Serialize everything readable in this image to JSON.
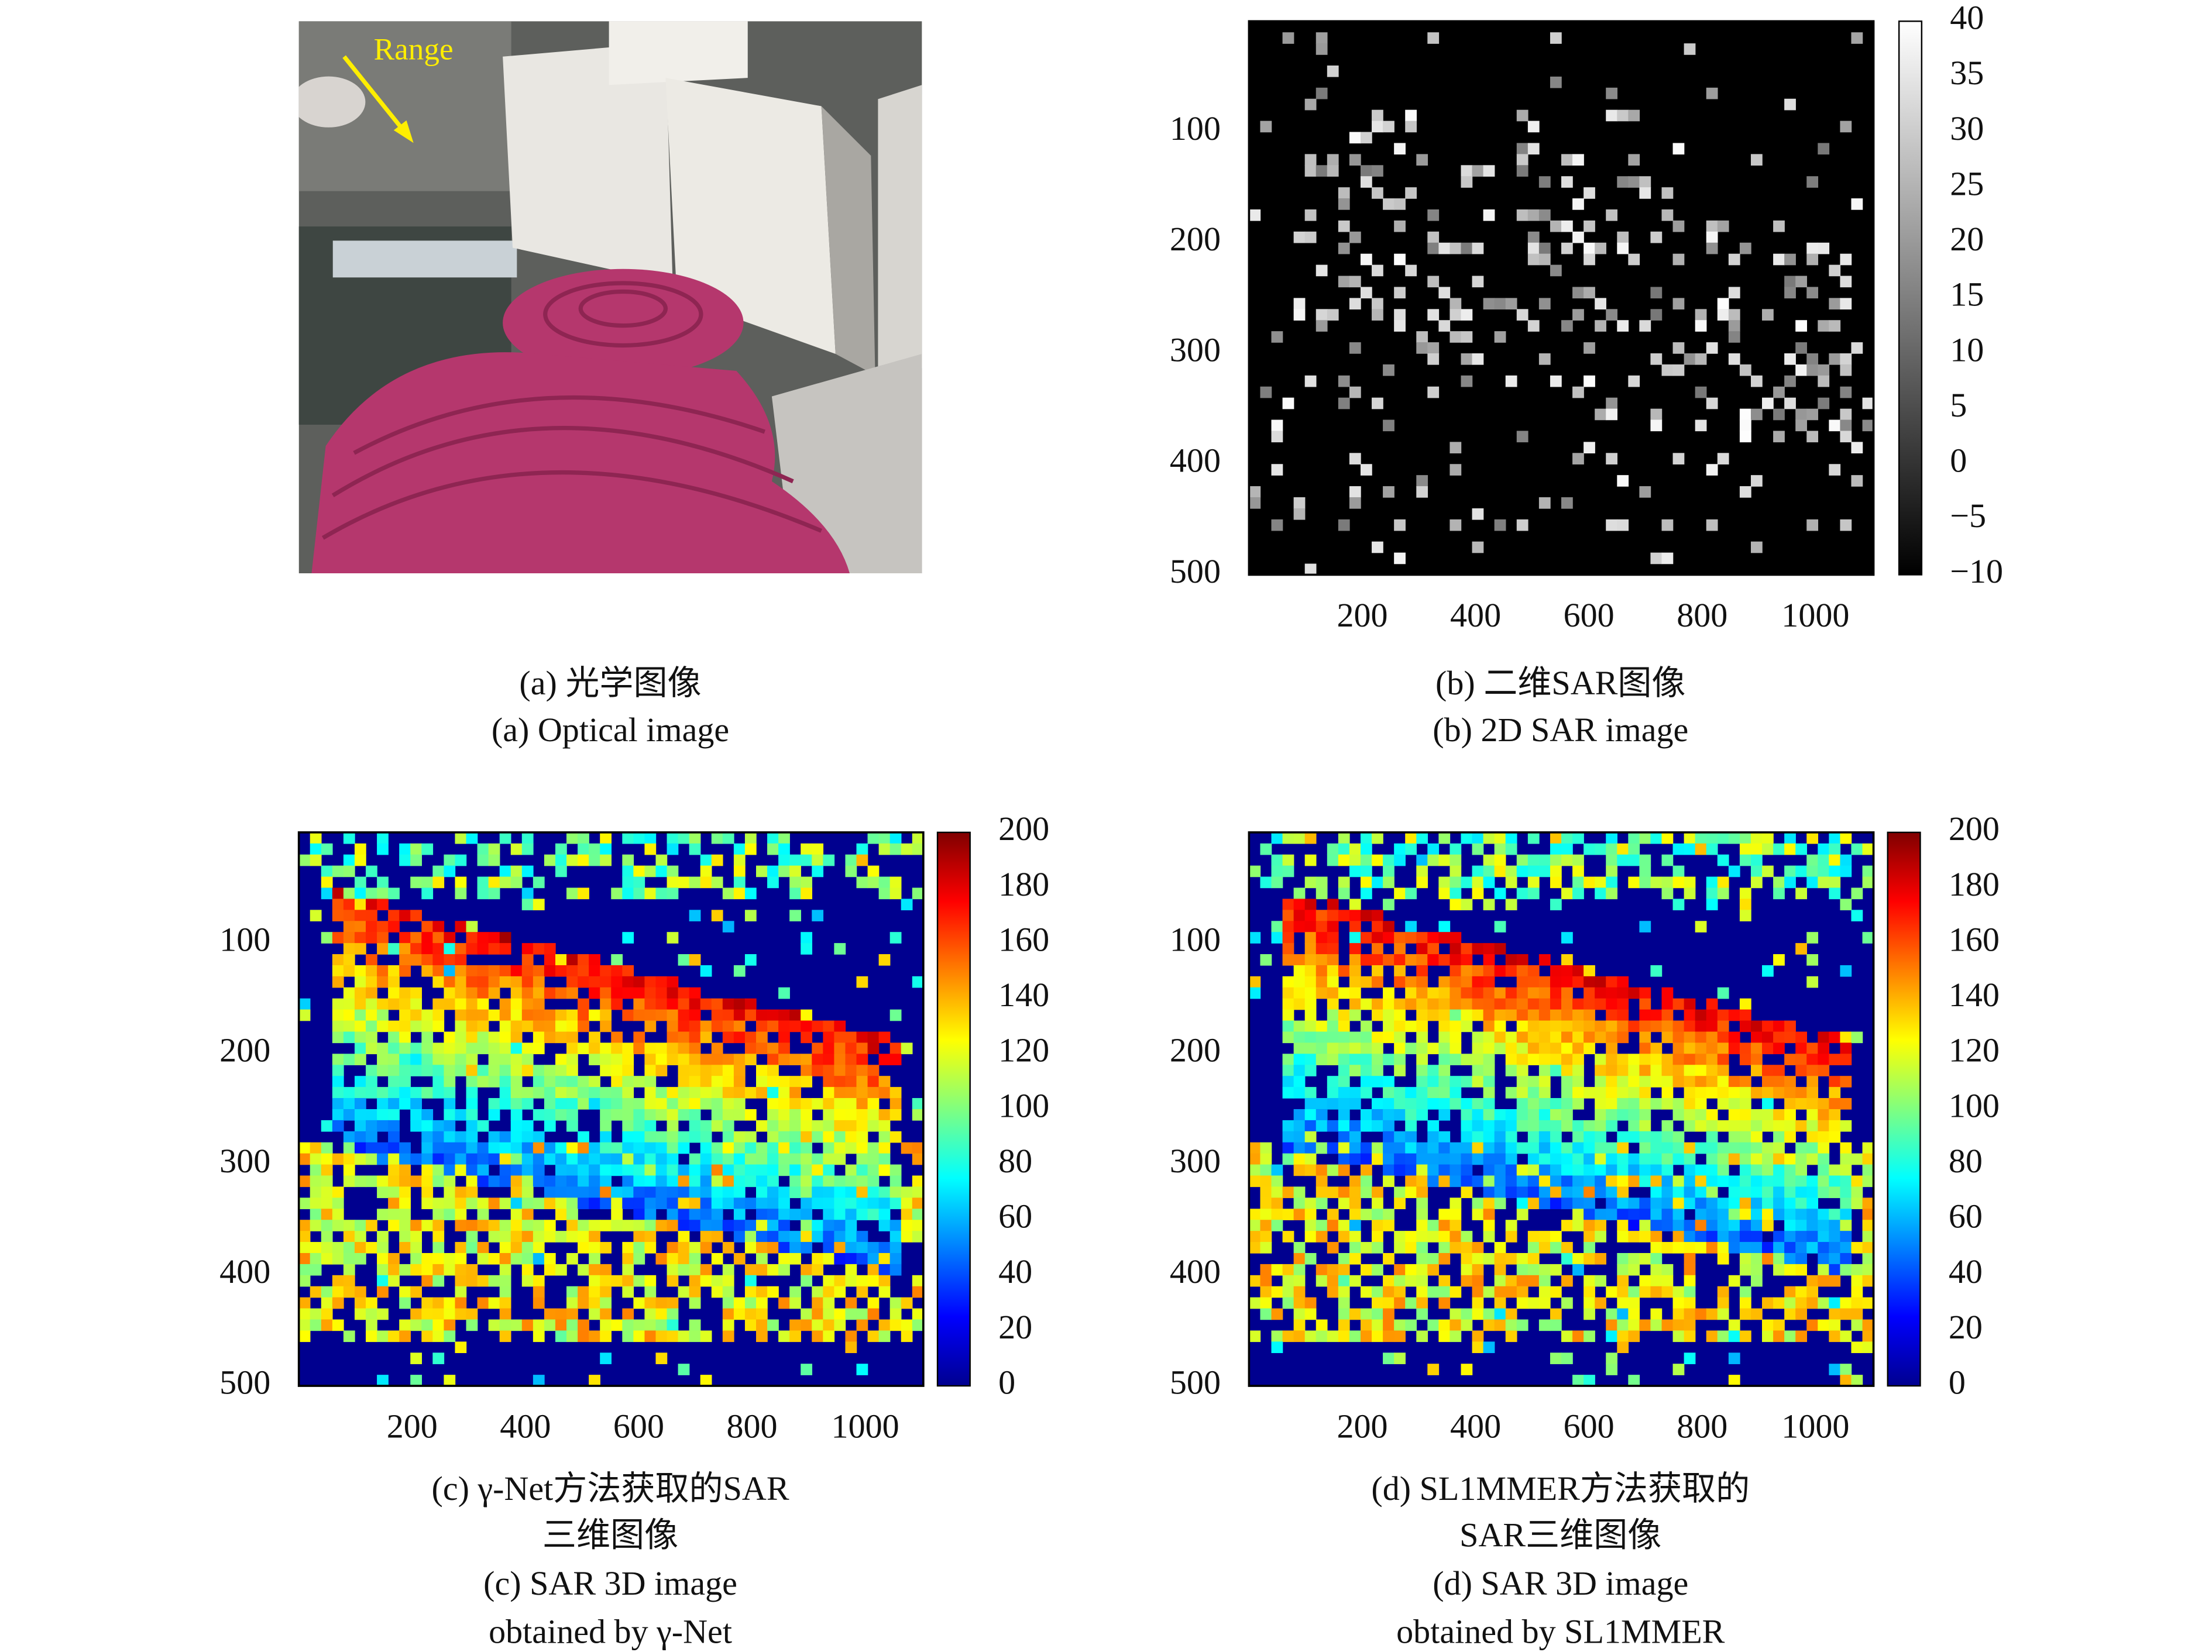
{
  "panels": [
    {
      "arrow_label": "Range",
      "caption_cn": [
        "(a) 光学图像"
      ],
      "caption_en": [
        "(a) Optical image"
      ]
    },
    {
      "yticks": [
        100,
        200,
        300,
        400,
        500
      ],
      "xticks": [
        200,
        400,
        600,
        800,
        1000
      ],
      "colorbar_ticks": [
        40,
        35,
        30,
        25,
        20,
        15,
        10,
        5,
        0,
        "−5",
        "−10"
      ],
      "caption_cn": [
        "(b) 二维SAR图像"
      ],
      "caption_en": [
        "(b) 2D SAR image"
      ]
    },
    {
      "yticks": [
        100,
        200,
        300,
        400,
        500
      ],
      "xticks": [
        200,
        400,
        600,
        800,
        1000
      ],
      "colorbar_ticks": [
        200,
        180,
        160,
        140,
        120,
        100,
        80,
        60,
        40,
        20,
        0
      ],
      "caption_cn": [
        "(c) γ-Net方法获取的SAR",
        "三维图像"
      ],
      "caption_en": [
        "(c) SAR 3D image",
        "obtained by γ-Net"
      ]
    },
    {
      "yticks": [
        100,
        200,
        300,
        400,
        500
      ],
      "xticks": [
        200,
        400,
        600,
        800,
        1000
      ],
      "colorbar_ticks": [
        200,
        180,
        160,
        140,
        120,
        100,
        80,
        60,
        40,
        20,
        0
      ],
      "caption_cn": [
        "(d) SL1MMER方法获取的",
        "SAR三维图像"
      ],
      "caption_en": [
        "(d) SAR 3D image",
        "obtained by SL1MMER"
      ]
    }
  ]
}
